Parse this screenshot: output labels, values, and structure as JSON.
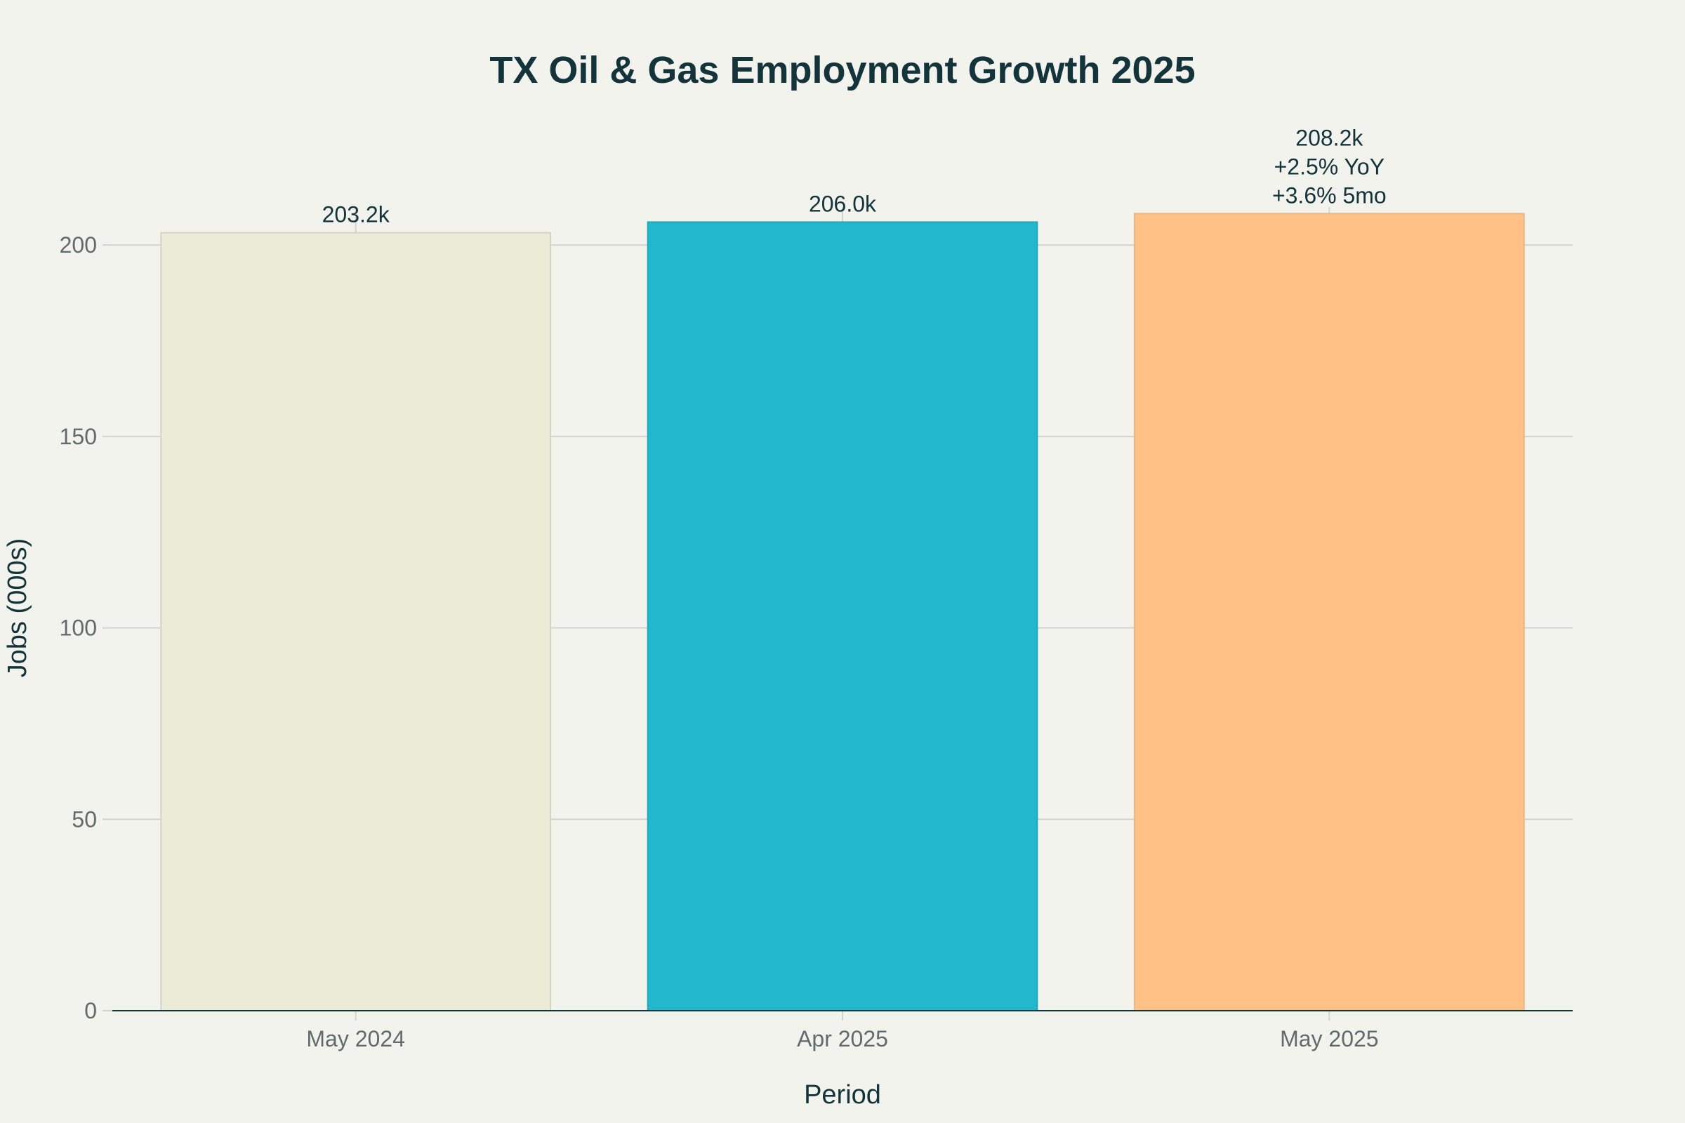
{
  "chart_data": {
    "type": "bar",
    "title": "TX Oil & Gas Employment Growth 2025",
    "xlabel": "Period",
    "ylabel": "Jobs (000s)",
    "categories": [
      "May 2024",
      "Apr 2025",
      "May 2025"
    ],
    "values": [
      203.2,
      206.0,
      208.2
    ],
    "data_labels": [
      [
        "203.2k"
      ],
      [
        "206.0k"
      ],
      [
        "208.2k",
        "+2.5% YoY",
        "+3.6% 5mo"
      ]
    ],
    "bar_colors": [
      "#ecebd7",
      "#21b8cd",
      "#ffc185"
    ],
    "bar_border_colors": [
      "#d3d3c6",
      "#1fa9bc",
      "#e7b784"
    ],
    "ylim": [
      0,
      220
    ],
    "yticks": [
      0,
      50,
      100,
      150,
      200
    ],
    "grid": true,
    "legend": "none"
  }
}
